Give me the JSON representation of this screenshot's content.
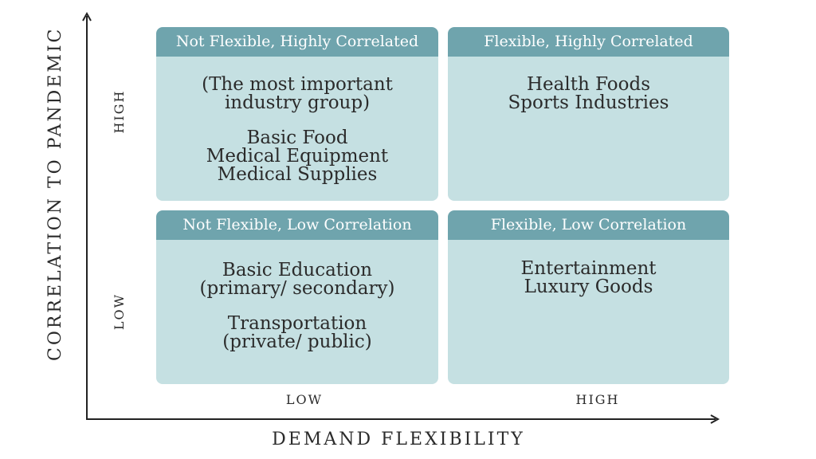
{
  "axes": {
    "y_title": "CORRELATION TO PANDEMIC",
    "x_title": "DEMAND FLEXIBILITY",
    "y_high": "HIGH",
    "y_low": "LOW",
    "x_low": "LOW",
    "x_high": "HIGH"
  },
  "quadrants": {
    "top_left": {
      "title": "Not Flexible, Highly Correlated",
      "groups": [
        [
          "(The most important",
          "industry group)"
        ],
        [
          "Basic Food",
          "Medical Equipment",
          "Medical Supplies"
        ]
      ]
    },
    "top_right": {
      "title": "Flexible, Highly Correlated",
      "groups": [
        [
          "Health Foods",
          "Sports Industries"
        ]
      ]
    },
    "bottom_left": {
      "title": "Not Flexible, Low Correlation",
      "groups": [
        [
          "Basic Education",
          "(primary/ secondary)"
        ],
        [
          "Transportation",
          "(private/ public)"
        ]
      ]
    },
    "bottom_right": {
      "title": "Flexible, Low Correlation",
      "groups": [
        [
          "Entertainment",
          "Luxury Goods"
        ]
      ]
    }
  },
  "colors": {
    "header": "#6fa4ad",
    "panel": "#c5e0e2",
    "text": "#2b2b2b",
    "axis": "#222222"
  }
}
